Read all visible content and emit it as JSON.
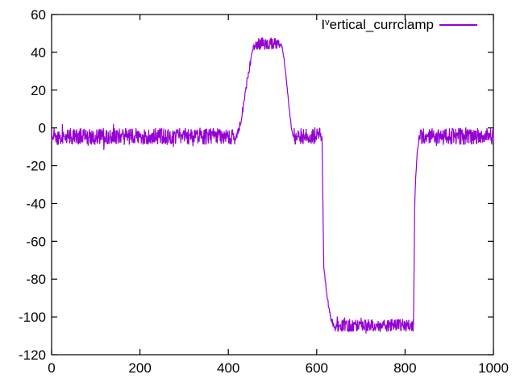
{
  "chart_data": {
    "type": "line",
    "title": "",
    "background_color": "#ffffff",
    "axes_color": "#000000",
    "grid": false,
    "legend_position": "top-right-inside",
    "xlim": [
      0,
      1000
    ],
    "ylim": [
      -120,
      60
    ],
    "x_ticks": [
      0,
      200,
      400,
      600,
      800,
      1000
    ],
    "y_ticks": [
      60,
      40,
      20,
      0,
      -20,
      -40,
      -60,
      -80,
      -100,
      -120
    ],
    "series": [
      {
        "label_prefix": "I",
        "label_superscript": "v",
        "label_rest": "ertical_currclamp",
        "label_plain": "Ivertical_currclamp",
        "color": "#9400d3",
        "waveform_segments": [
          {
            "x0": 0,
            "x1": 416,
            "y0": -4.5,
            "y1": -4.5,
            "shape": "flat",
            "noise": 4.5
          },
          {
            "x0": 416,
            "x1": 463,
            "y0": -4.5,
            "y1": 44.5,
            "shape": "smooth",
            "noise": 2.2
          },
          {
            "x0": 463,
            "x1": 518,
            "y0": 44.5,
            "y1": 44.5,
            "shape": "flat",
            "noise": 3.3
          },
          {
            "x0": 518,
            "x1": 549,
            "y0": 44.5,
            "y1": -4.5,
            "shape": "smooth",
            "noise": 0.9
          },
          {
            "x0": 549,
            "x1": 612,
            "y0": -4.5,
            "y1": -4.5,
            "shape": "flat",
            "noise": 4.5
          },
          {
            "x0": 612,
            "x1": 616,
            "y0": -4.5,
            "y1": -72,
            "shape": "linear",
            "noise": 0.5
          },
          {
            "x0": 616,
            "x1": 641,
            "y0": -72,
            "y1": -104.5,
            "shape": "ease_out",
            "noise": 1.6
          },
          {
            "x0": 641,
            "x1": 819,
            "y0": -104.5,
            "y1": -104.5,
            "shape": "flat",
            "noise": 3.4
          },
          {
            "x0": 819,
            "x1": 822,
            "y0": -104.5,
            "y1": -38,
            "shape": "linear",
            "noise": 0.5
          },
          {
            "x0": 822,
            "x1": 834,
            "y0": -38,
            "y1": -4.5,
            "shape": "ease_out",
            "noise": 1.8
          },
          {
            "x0": 834,
            "x1": 1000,
            "y0": -4.5,
            "y1": -4.5,
            "shape": "flat",
            "noise": 4.5
          }
        ]
      }
    ]
  }
}
